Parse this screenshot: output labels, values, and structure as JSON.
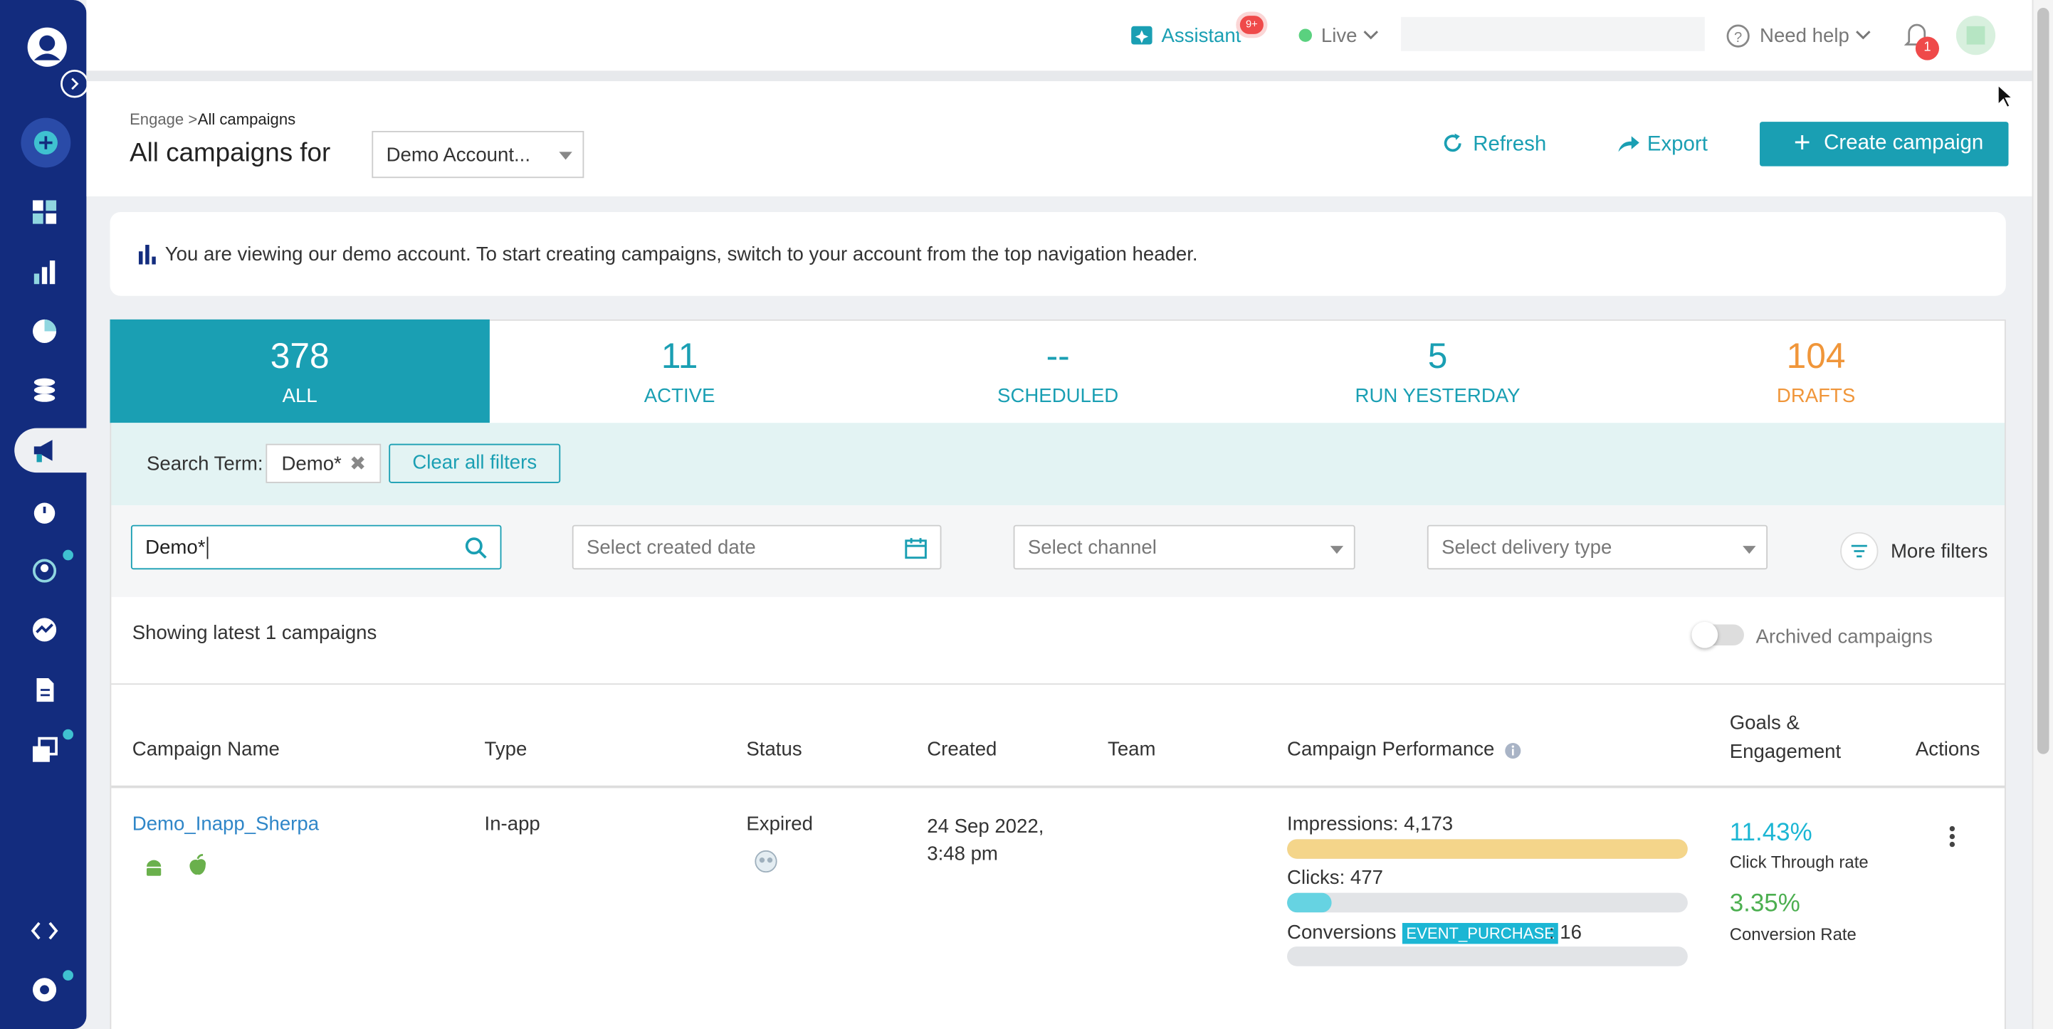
{
  "topbar": {
    "assistant": "Assistant",
    "assistant_badge": "9+",
    "environment": "Live",
    "help": "Need help",
    "notifications": "1"
  },
  "header": {
    "breadcrumb_parent": "Engage >",
    "breadcrumb_current": "All campaigns",
    "title": "All campaigns for",
    "account": "Demo Account...",
    "refresh": "Refresh",
    "export": "Export",
    "create": "Create campaign"
  },
  "banner": "You are viewing our demo account. To start creating campaigns, switch to your account from the top navigation header.",
  "tabs": [
    {
      "count": "378",
      "label": "ALL"
    },
    {
      "count": "11",
      "label": "ACTIVE"
    },
    {
      "count": "--",
      "label": "SCHEDULED"
    },
    {
      "count": "5",
      "label": "RUN YESTERDAY"
    },
    {
      "count": "104",
      "label": "DRAFTS"
    }
  ],
  "filters": {
    "search_term_label": "Search Term:",
    "search_chip": "Demo*",
    "clear": "Clear all filters",
    "search_value": "Demo*",
    "created_date": "Select created date",
    "channel": "Select channel",
    "delivery_type": "Select delivery type",
    "more": "More filters"
  },
  "results": {
    "showing": "Showing latest 1 campaigns",
    "archived": "Archived campaigns"
  },
  "table": {
    "columns": [
      "Campaign Name",
      "Type",
      "Status",
      "Created",
      "Team",
      "Campaign Performance",
      "Goals & Engagement",
      "Actions"
    ],
    "rows": [
      {
        "name": "Demo_Inapp_Sherpa",
        "type": "In-app",
        "status": "Expired",
        "created": "24 Sep 2022, 3:48 pm",
        "impressions": "Impressions: 4,173",
        "clicks": "Clicks: 477",
        "conversions": "Conversions",
        "conversion_event": "EVENT_PURCHASE",
        "conversion_count": ": 16",
        "ctr": "11.43%",
        "ctr_label": "Click Through rate",
        "cr": "3.35%",
        "cr_label": "Conversion Rate"
      }
    ]
  }
}
